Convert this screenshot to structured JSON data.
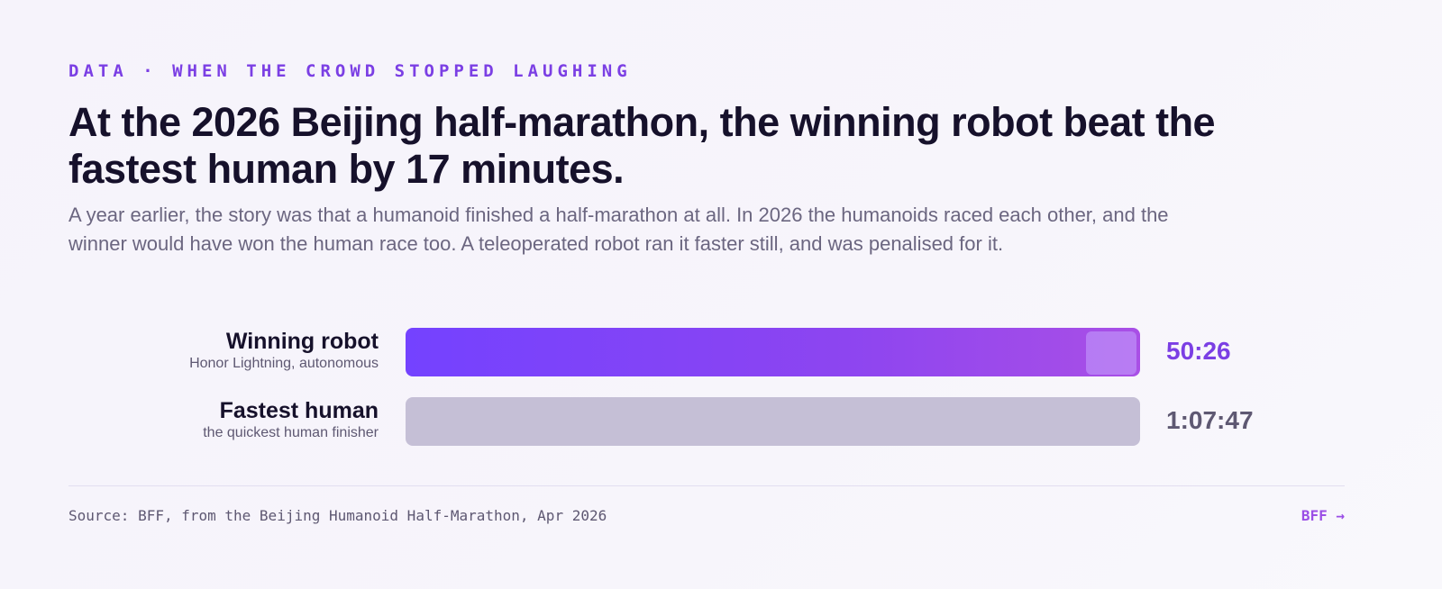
{
  "header": {
    "kicker": "DATA · WHEN THE CROWD STOPPED LAUGHING",
    "title": "At the 2026 Beijing half-marathon, the winning robot beat the fastest human by 17 minutes.",
    "subtitle": "A year earlier, the story was that a humanoid finished a half-marathon at all. In 2026 the humanoids raced each other, and the winner would have won the human race too. A teleoperated robot ran it faster still, and was penalised for it."
  },
  "rows": [
    {
      "label": "Winning robot",
      "sublabel": "Honor Lightning, autonomous",
      "time": "50:26"
    },
    {
      "label": "Fastest human",
      "sublabel": "the quickest human finisher",
      "time": "1:07:47"
    }
  ],
  "footer": {
    "source": "Source: BFF, from the Beijing Humanoid Half-Marathon, Apr 2026",
    "brand": "BFF →"
  }
}
